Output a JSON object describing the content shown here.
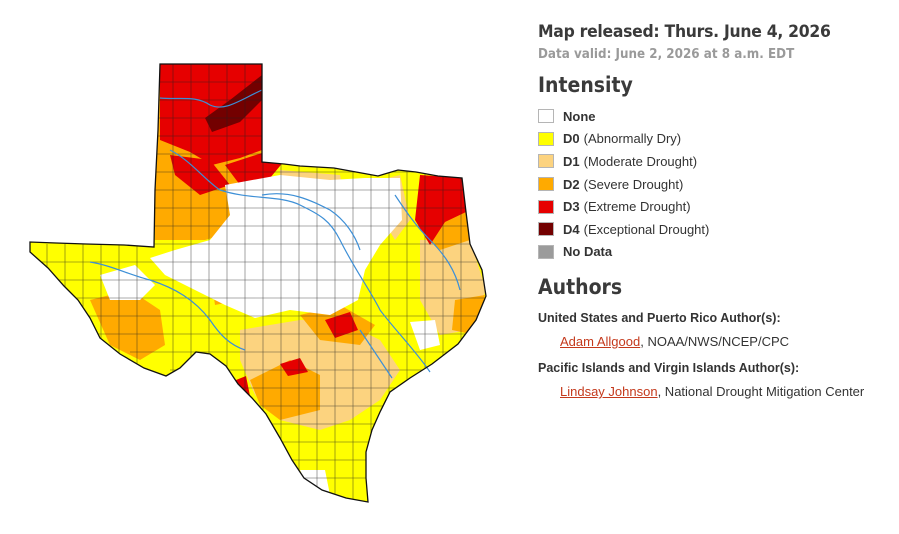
{
  "released": "Map released: Thurs. June 4, 2026",
  "valid": "Data valid: June 2, 2026 at 8 a.m. EDT",
  "intensity_heading": "Intensity",
  "legend": [
    {
      "code": "",
      "label": "None",
      "color": "#ffffff"
    },
    {
      "code": "D0",
      "label": "(Abnormally Dry)",
      "color": "#ffff00"
    },
    {
      "code": "D1",
      "label": "(Moderate Drought)",
      "color": "#fcd37f"
    },
    {
      "code": "D2",
      "label": "(Severe Drought)",
      "color": "#ffaa00"
    },
    {
      "code": "D3",
      "label": "(Extreme Drought)",
      "color": "#e60000"
    },
    {
      "code": "D4",
      "label": "(Exceptional Drought)",
      "color": "#730000"
    },
    {
      "code": "",
      "label": "No Data",
      "color": "#9b9b9b"
    }
  ],
  "authors_heading": "Authors",
  "authors": [
    {
      "label": "United States and Puerto Rico Author(s):",
      "name": "Adam Allgood",
      "affiliation": ", NOAA/NWS/NCEP/CPC"
    },
    {
      "label": "Pacific Islands and Virgin Islands Author(s):",
      "name": "Lindsay Johnson",
      "affiliation": ", National Drought Mitigation Center"
    }
  ],
  "map": {
    "region": "Texas",
    "river_color": "#3d8fd6",
    "county_line_color": "#222222"
  }
}
